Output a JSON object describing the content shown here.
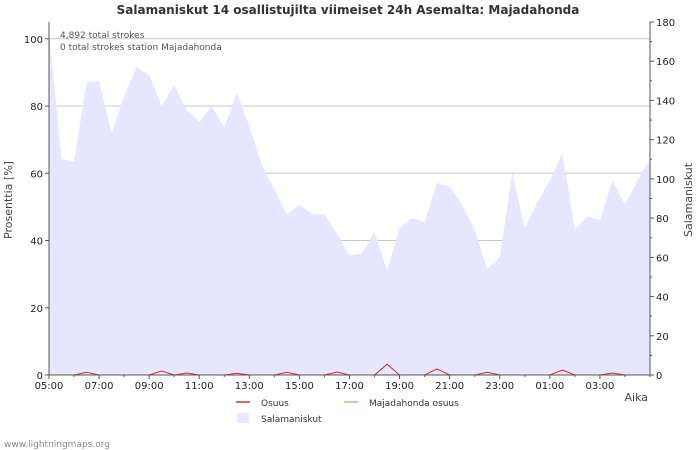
{
  "chart_data": {
    "type": "area",
    "title": "Salamaniskut 14 osallistujilta viimeiset 24h Asemalta: Majadahonda",
    "notes": [
      "4,892 total strokes",
      "0 total strokes station Majadahonda"
    ],
    "xlabel": "Aika",
    "ylabel_left": "Prosenttia   [%]",
    "ylabel_right": "Salamaniskut",
    "ylim_left": [
      0,
      105
    ],
    "ylim_right": [
      0,
      180
    ],
    "y_ticks_left": [
      "0",
      "20",
      "40",
      "60",
      "80",
      "100"
    ],
    "y_ticks_right": [
      "0",
      "20",
      "40",
      "60",
      "80",
      "100",
      "120",
      "140",
      "160",
      "180"
    ],
    "x_tick_labels": [
      "05:00",
      "07:00",
      "09:00",
      "11:00",
      "13:00",
      "15:00",
      "17:00",
      "19:00",
      "21:00",
      "23:00",
      "01:00",
      "03:00"
    ],
    "x_range_hours": [
      0,
      24
    ],
    "series": [
      {
        "name": "Salamaniskut",
        "axis": "right",
        "style": "area",
        "color": "#e6e6ff",
        "x": [
          0,
          0.5,
          1,
          1.5,
          2,
          2.5,
          3,
          3.5,
          4,
          4.5,
          5,
          5.5,
          6,
          6.5,
          7,
          7.5,
          8,
          8.5,
          9,
          9.5,
          10,
          10.5,
          11,
          11.5,
          12,
          12.5,
          13,
          13.5,
          14,
          14.5,
          15,
          15.5,
          16,
          16.5,
          17,
          17.5,
          18,
          18.5,
          19,
          19.5,
          20,
          20.5,
          21,
          21.5,
          22,
          22.5,
          23,
          23.5,
          24
        ],
        "values": [
          175,
          110,
          109,
          149,
          150,
          123,
          142,
          157,
          153,
          137,
          148,
          135,
          129,
          137,
          126,
          144,
          127,
          107,
          95,
          82,
          87,
          82,
          82,
          72,
          61,
          62,
          73,
          53,
          75,
          80,
          78,
          98,
          96,
          87,
          74,
          54,
          60,
          103,
          75,
          88,
          99,
          113,
          74,
          81,
          79,
          99,
          87,
          99,
          110
        ]
      },
      {
        "name": "Osuus",
        "axis": "left",
        "style": "line",
        "color": "#cc3333",
        "x": [
          0,
          1,
          1.5,
          2,
          3,
          4,
          4.5,
          5,
          5.5,
          6,
          7,
          7.5,
          8,
          9,
          9.5,
          10,
          11,
          11.5,
          12,
          13,
          13.5,
          14,
          15,
          15.5,
          16,
          17,
          17.5,
          18,
          19,
          20,
          20.5,
          21,
          22,
          22.5,
          23,
          24
        ],
        "values": [
          0,
          0,
          0.8,
          0,
          0,
          0,
          1.2,
          0,
          0.6,
          0,
          0,
          0.5,
          0,
          0,
          0.8,
          0,
          0,
          0.9,
          0,
          0,
          3.2,
          0,
          0,
          1.8,
          0,
          0,
          0.8,
          0,
          0,
          0,
          1.5,
          0,
          0,
          0.6,
          0,
          0
        ]
      },
      {
        "name": "Majadahonda osuus",
        "axis": "left",
        "style": "line",
        "color": "#f0a08a",
        "x": [
          0,
          24
        ],
        "values": [
          0,
          0
        ]
      }
    ],
    "legend": [
      "Osuus",
      "Majadahonda osuus",
      "Salamaniskut"
    ],
    "legend_position": "bottom-center",
    "grid": true
  },
  "footer": "www.lightningmaps.org"
}
